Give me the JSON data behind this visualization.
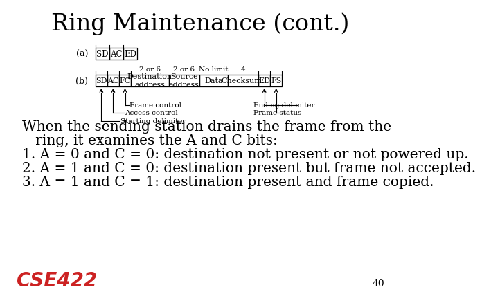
{
  "title": "Ring Maintenance (cont.)",
  "title_fontsize": 24,
  "bg_color": "#ffffff",
  "text_color": "#000000",
  "label_a": "(a)",
  "label_b": "(b)",
  "frame_a_cells": [
    "SD",
    "AC",
    "ED"
  ],
  "frame_b_cells": [
    "SD",
    "AC",
    "FC",
    "Destination\naddress",
    "Source\naddress",
    "Data",
    "Checksum.",
    "ED",
    "FS"
  ],
  "frame_b_widths": [
    0.5,
    0.5,
    0.5,
    1.6,
    1.3,
    1.2,
    1.3,
    0.5,
    0.5
  ],
  "frame_b_sizes": [
    "",
    "",
    "",
    "2 or 6",
    "2 or 6",
    "No limit",
    "4",
    "",
    ""
  ],
  "body_lines": [
    "When the sending station drains the frame from the",
    "   ring, it examines the A and C bits:",
    "1. A = 0 and C = 0: destination not present or not powered up.",
    "2. A = 1 and C = 0: destination present but frame not accepted.",
    "3. A = 1 and C = 1: destination present and frame copied."
  ],
  "body_fontsize": 14.5,
  "page_number": "40",
  "cse_text": "CSE422",
  "cse_color": "#cc2222"
}
